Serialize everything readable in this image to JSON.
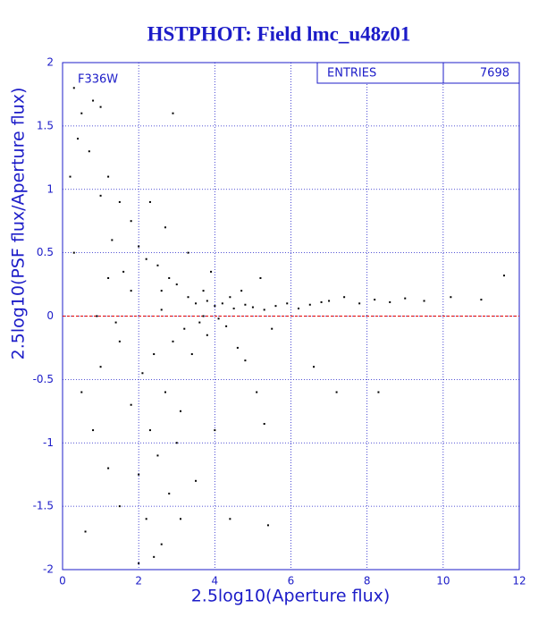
{
  "chart_data": {
    "type": "scatter",
    "title": "HSTPHOT: Field lmc_u48z01",
    "x_label": "2.5log10(Aperture flux)",
    "y_label": "2.5log10(PSF flux/Aperture flux)",
    "annotation": "F336W",
    "stats": {
      "label": "ENTRIES",
      "value": 7698
    },
    "xlim": [
      0,
      12
    ],
    "ylim": [
      -2,
      2
    ],
    "xticks": [
      0,
      2,
      4,
      6,
      8,
      10,
      12
    ],
    "yticks": [
      -2,
      -1.5,
      -1,
      -0.5,
      0,
      0.5,
      1,
      1.5,
      2
    ],
    "grid": true,
    "axis_color": "#1c1cc8",
    "point_color": "#000000",
    "hline": {
      "value": 0,
      "color": "#e00000"
    },
    "x": [
      0.3,
      0.5,
      0.8,
      1.0,
      0.4,
      0.7,
      1.2,
      1.0,
      1.5,
      1.8,
      1.3,
      2.0,
      2.2,
      1.6,
      2.5,
      2.8,
      3.0,
      2.6,
      3.3,
      3.5,
      3.8,
      4.0,
      4.2,
      4.5,
      4.8,
      5.0,
      5.3,
      5.6,
      5.9,
      6.2,
      6.5,
      7.0,
      7.4,
      7.8,
      8.2,
      8.6,
      9.0,
      9.5,
      10.2,
      11.0,
      11.6,
      3.2,
      2.9,
      3.6,
      2.4,
      2.1,
      2.7,
      3.1,
      2.3,
      2.5,
      2.0,
      2.8,
      2.2,
      2.6,
      2.0,
      1.5,
      1.2,
      0.8,
      0.5,
      1.0,
      1.5,
      0.6,
      1.8,
      3.4,
      3.8,
      4.3,
      4.6,
      5.1,
      3.0,
      3.5,
      4.0,
      4.4,
      5.4,
      5.3,
      7.2,
      8.3,
      3.9,
      3.3,
      2.7,
      2.3,
      4.7,
      5.2,
      6.6,
      1.8,
      1.2,
      0.9,
      1.4,
      2.6,
      3.7,
      4.1,
      0.2,
      0.3,
      3.1,
      2.9,
      4.8,
      5.5,
      6.8,
      2.4,
      3.7,
      4.4
    ],
    "y": [
      1.8,
      1.6,
      1.7,
      1.65,
      1.4,
      1.3,
      1.1,
      0.95,
      0.9,
      0.75,
      0.6,
      0.55,
      0.45,
      0.35,
      0.4,
      0.3,
      0.25,
      0.2,
      0.15,
      0.1,
      0.12,
      0.08,
      0.1,
      0.06,
      0.09,
      0.07,
      0.05,
      0.08,
      0.1,
      0.06,
      0.09,
      0.12,
      0.15,
      0.1,
      0.13,
      0.11,
      0.14,
      0.12,
      0.15,
      0.13,
      0.32,
      -0.1,
      -0.2,
      -0.05,
      -0.3,
      -0.45,
      -0.6,
      -0.75,
      -0.9,
      -1.1,
      -1.25,
      -1.4,
      -1.6,
      -1.8,
      -1.95,
      -1.5,
      -1.2,
      -0.9,
      -0.6,
      -0.4,
      -0.2,
      -1.7,
      -0.7,
      -0.3,
      -0.15,
      -0.08,
      -0.25,
      -0.6,
      -1.0,
      -1.3,
      -0.9,
      -1.6,
      -1.65,
      -0.85,
      -0.6,
      -0.6,
      0.35,
      0.5,
      0.7,
      0.9,
      0.2,
      0.3,
      -0.4,
      0.2,
      0.3,
      0.0,
      -0.05,
      0.05,
      0.0,
      -0.02,
      1.1,
      0.5,
      -1.6,
      1.6,
      -0.35,
      -0.1,
      0.11,
      -1.9,
      0.2,
      0.15
    ]
  }
}
